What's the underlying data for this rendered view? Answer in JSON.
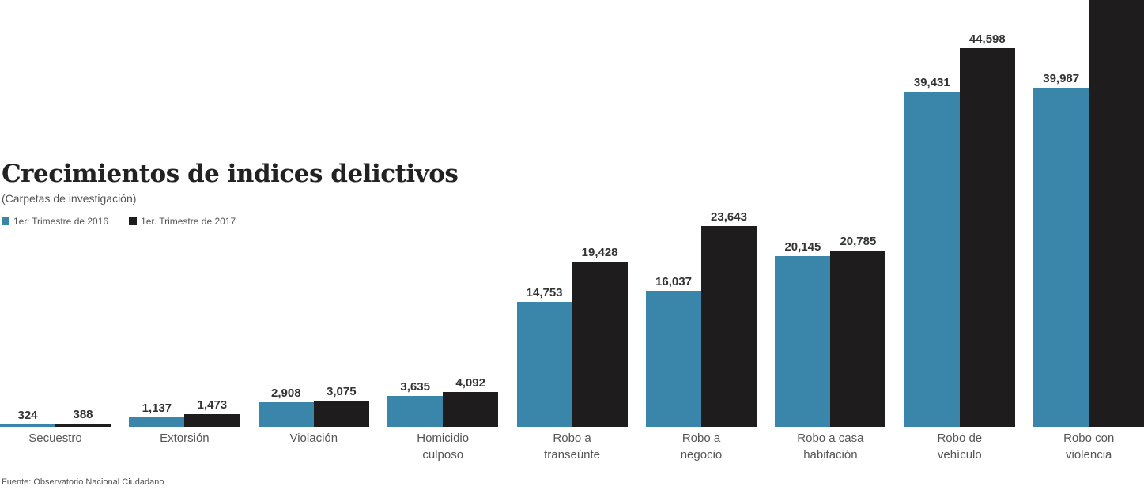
{
  "title": "Crecimientos de indices delictivos",
  "subtitle": "(Carpetas de investigación)",
  "legend": [
    {
      "label": "1er. Trimestre de 2016",
      "color": "#3a86ab"
    },
    {
      "label": "1er. Trimestre de 2017",
      "color": "#1e1c1d"
    }
  ],
  "source": "Fuente: Observatorio Nacional Ciudadano",
  "chart_data": {
    "type": "bar",
    "title": "Crecimientos de indices delictivos",
    "subtitle": "(Carpetas de investigación)",
    "xlabel": "",
    "ylabel": "",
    "categories": [
      "Secuestro",
      "Extorsión",
      "Violación",
      "Homicidio culposo",
      "Robo a transeúnte",
      "Robo a negocio",
      "Robo a casa habitación",
      "Robo de vehículo",
      "Robo con violencia"
    ],
    "series": [
      {
        "name": "1er. Trimestre de 2016",
        "color": "#3a86ab",
        "values": [
          324,
          1137,
          2908,
          3635,
          14753,
          16037,
          20145,
          39431,
          39987
        ]
      },
      {
        "name": "1er. Trimestre de 2017",
        "color": "#1e1c1d",
        "values": [
          388,
          1473,
          3075,
          4092,
          19428,
          23643,
          20785,
          44598,
          null
        ]
      }
    ],
    "value_labels": {
      "2016": [
        "324",
        "1,137",
        "2,908",
        "3,635",
        "14,753",
        "16,037",
        "20,145",
        "39,431",
        "39,987"
      ],
      "2017": [
        "388",
        "1,473",
        "3,075",
        "4,092",
        "19,428",
        "23,643",
        "20,785",
        "44,598",
        ""
      ]
    },
    "notes": "Robo con violencia 2017 bar extends beyond the top of the image; its label is not visible.",
    "grid": false,
    "legend_position": "top-left",
    "source": "Fuente: Observatorio Nacional Ciudadano"
  }
}
